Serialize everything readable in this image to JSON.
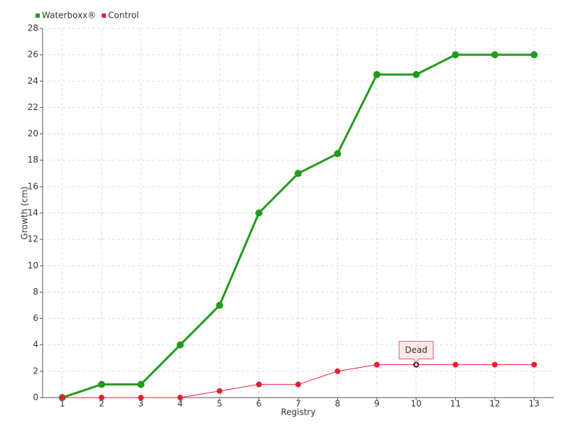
{
  "chart_data": {
    "type": "line",
    "x_label": "Registry",
    "y_label": "Growth (cm)",
    "categories": [
      "1",
      "2",
      "3",
      "4",
      "5",
      "6",
      "7",
      "8",
      "9",
      "10",
      "11",
      "12",
      "13"
    ],
    "series": [
      {
        "name": "Waterboxx®",
        "color": "#229a1a",
        "values": [
          0,
          1,
          1,
          4,
          7,
          14,
          17,
          18.5,
          24.5,
          24.5,
          26,
          26,
          26
        ]
      },
      {
        "name": "Control",
        "color": "#e5202e",
        "values": [
          0,
          0,
          0,
          0,
          0.5,
          1,
          1,
          2,
          2.5,
          2.5,
          2.5,
          2.5,
          2.5
        ]
      }
    ],
    "annotations": [
      {
        "label": "Dead",
        "x": "10",
        "y": 2.5
      }
    ],
    "ylim": [
      0,
      28
    ],
    "yticks": [
      0,
      2,
      4,
      6,
      8,
      10,
      12,
      14,
      16,
      18,
      20,
      22,
      24,
      26,
      28
    ],
    "grid": true,
    "legend": "top-left"
  }
}
